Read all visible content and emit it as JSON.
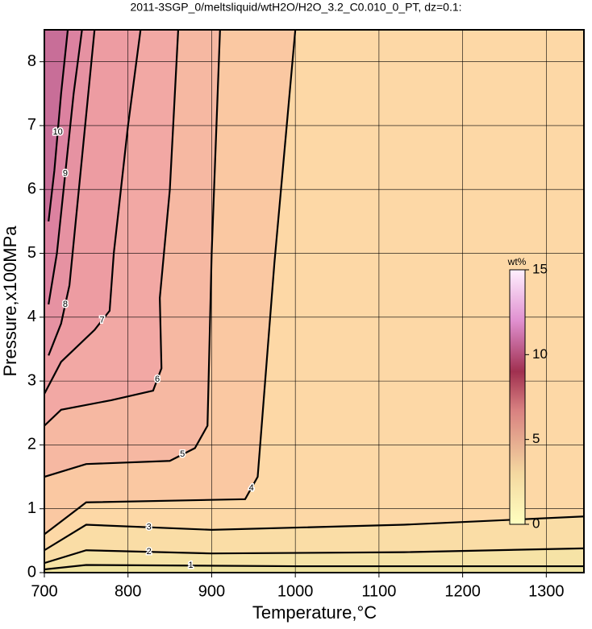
{
  "chart_data": {
    "type": "contour",
    "title": "2011-3SGP_0/meltsliquid/wtH2O/H2O_3.2_C0.010_0_PT, dz=0.1:",
    "x_label": "Temperature,°C",
    "y_label": "Pressure,x100MPa",
    "xlim": [
      700,
      1345
    ],
    "xticks": [
      700,
      800,
      900,
      1000,
      1100,
      1200,
      1300
    ],
    "ylim": [
      0,
      8.5
    ],
    "yticks": [
      0,
      1,
      2,
      3,
      4,
      5,
      6,
      7,
      8
    ],
    "grid": true,
    "contours": [
      {
        "level": 1,
        "color": "#f6e3a6",
        "x": [
          700,
          750,
          1000,
          1345
        ],
        "y": [
          0.05,
          0.12,
          0.1,
          0.1
        ]
      },
      {
        "level": 2,
        "color": "#fadda6",
        "x": [
          700,
          750,
          900,
          1130,
          1345
        ],
        "y": [
          0.15,
          0.35,
          0.3,
          0.32,
          0.38
        ]
      },
      {
        "level": 3,
        "color": "#fdd8a6",
        "x": [
          700,
          750,
          900,
          1130,
          1345
        ],
        "y": [
          0.35,
          0.75,
          0.67,
          0.75,
          0.88
        ]
      },
      {
        "level": 4,
        "color": "#fac8a2",
        "x": [
          700,
          750,
          940,
          955,
          975,
          1000
        ],
        "y": [
          0.6,
          1.1,
          1.15,
          1.5,
          4.85,
          8.5
        ]
      },
      {
        "level": 5,
        "color": "#f6b8a2",
        "x": [
          700,
          750,
          850,
          880,
          895,
          900,
          910
        ],
        "y": [
          1.5,
          1.7,
          1.75,
          1.95,
          2.3,
          5.0,
          8.5
        ]
      },
      {
        "level": 6,
        "color": "#f2a8a4",
        "x": [
          700,
          720,
          780,
          830,
          840,
          838,
          850,
          860
        ],
        "y": [
          2.3,
          2.55,
          2.7,
          2.85,
          3.2,
          4.3,
          6.0,
          8.5
        ]
      },
      {
        "level": 7,
        "color": "#ed9ca2",
        "x": [
          700,
          720,
          760,
          778,
          783,
          800,
          815
        ],
        "y": [
          2.8,
          3.3,
          3.8,
          4.1,
          5.0,
          7.0,
          8.5
        ]
      },
      {
        "level": 8,
        "color": "#e692a2",
        "x": [
          705,
          720,
          730,
          745,
          760
        ],
        "y": [
          3.4,
          3.9,
          4.5,
          6.5,
          8.5
        ]
      },
      {
        "level": 9,
        "color": "#dc82a0",
        "x": [
          705,
          715,
          735,
          745
        ],
        "y": [
          4.2,
          5.0,
          7.5,
          8.5
        ]
      },
      {
        "level": 10,
        "color": "#c86e98",
        "x": [
          705,
          712,
          720,
          728
        ],
        "y": [
          5.5,
          6.3,
          7.5,
          8.5
        ]
      }
    ],
    "colorbar": {
      "label": "wt%",
      "lim": [
        0,
        15
      ],
      "ticks": [
        0,
        5,
        10,
        15
      ]
    }
  }
}
